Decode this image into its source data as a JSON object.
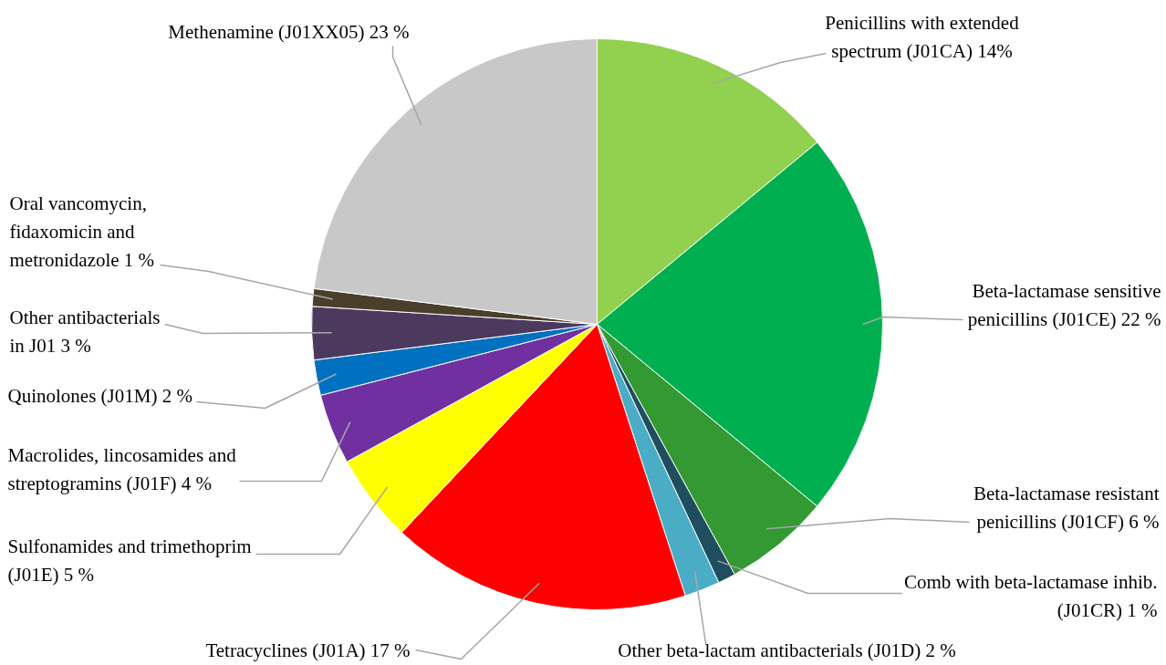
{
  "chart_data": {
    "type": "pie",
    "categories": [
      "Penicillins with extended\nspectrum (J01CA)",
      "Beta-lactamase sensitive\npenicillins (J01CE)",
      "Beta-lactamase resistant\npenicillins (J01CF)",
      "Comb with beta-lactamase inhib.\n(J01CR)",
      "Other beta-lactam antibacterials (J01D)",
      "Tetracyclines (J01A)",
      "Sulfonamides and trimethoprim\n(J01E)",
      "Macrolides, lincosamides and\nstreptogramins (J01F)",
      "Quinolones (J01M)",
      "Other antibacterials\nin J01",
      "Oral vancomycin,\nfidaxomicin and\nmetronidazole",
      "Methenamine (J01XX05)"
    ],
    "values": [
      14,
      22,
      6,
      1,
      2,
      17,
      5,
      4,
      2,
      3,
      1,
      23
    ],
    "value_labels": [
      "14%",
      "22 %",
      "6 %",
      "1 %",
      "2 %",
      "17 %",
      "5 %",
      "4 %",
      "2 %",
      "3 %",
      "1 %",
      "23 %"
    ],
    "colors": [
      "#92d050",
      "#00b050",
      "#339933",
      "#1f4e5f",
      "#4bacc6",
      "#ff0000",
      "#ffff00",
      "#7030a0",
      "#0070c0",
      "#4b3a5e",
      "#4a3f2a",
      "#c8c8c8"
    ]
  }
}
